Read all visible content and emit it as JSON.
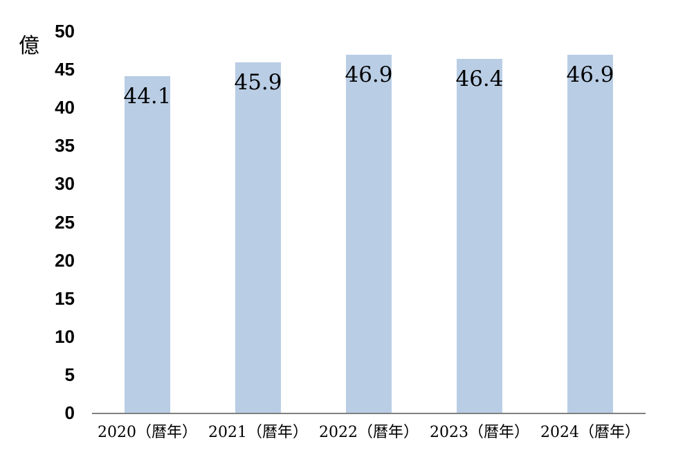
{
  "chart_data": {
    "type": "bar",
    "title": "",
    "xlabel": "",
    "ylabel": "億",
    "categories": [
      "2020（暦年）",
      "2021（暦年）",
      "2022（暦年）",
      "2023（暦年）",
      "2024（暦年）"
    ],
    "values": [
      44.1,
      45.9,
      46.9,
      46.4,
      46.9
    ],
    "value_labels": [
      "44.1",
      "45.9",
      "46.9",
      "46.4",
      "46.9"
    ],
    "yticks": [
      0,
      5,
      10,
      15,
      20,
      25,
      30,
      35,
      40,
      45,
      50
    ],
    "ylim": [
      0,
      50
    ],
    "grid": false,
    "legend": "none",
    "label_position": "inside-end",
    "bar_color": "#B9CDE5",
    "axis_line_color": "#808080",
    "text_color": "#000000"
  }
}
